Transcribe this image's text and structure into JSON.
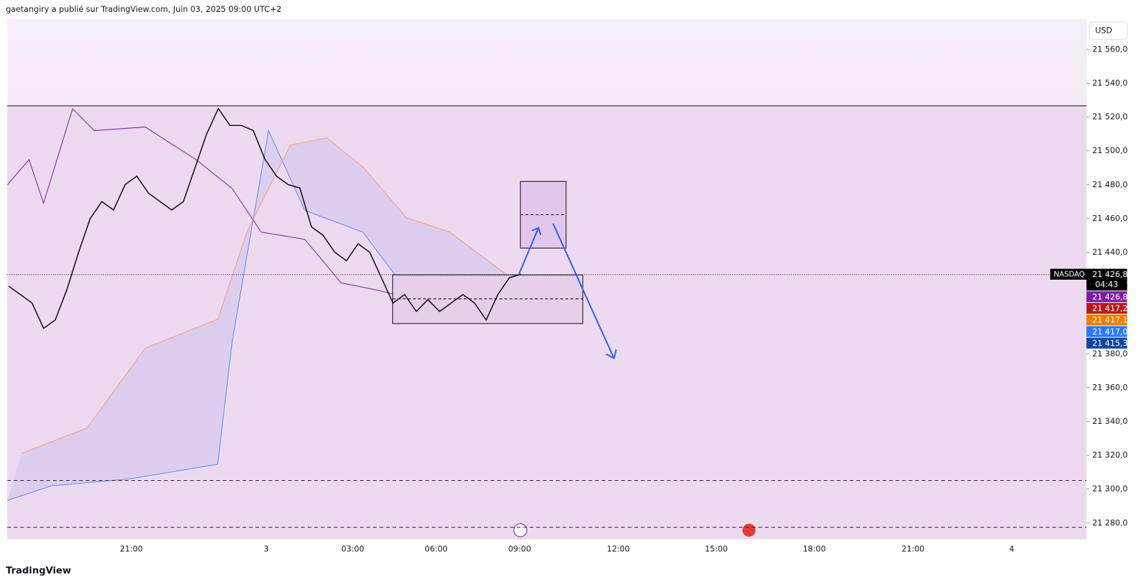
{
  "header": {
    "title": "gaetangiry a publié sur TradingView.com, Juin 03, 2025 09:00 UTC+2"
  },
  "footer": {
    "brand": "TradingView"
  },
  "chart_data": {
    "type": "line",
    "currency": "USD",
    "symbol": "NASDAQ",
    "countdown": "04:43",
    "ylim": [
      21270.5,
      21578
    ],
    "yticks": [
      {
        "value": 21280,
        "label": "21 280,0"
      },
      {
        "value": 21300,
        "label": "21 300,0"
      },
      {
        "value": 21320,
        "label": "21 320,0"
      },
      {
        "value": 21340,
        "label": "21 340,0"
      },
      {
        "value": 21360,
        "label": "21 360,0"
      },
      {
        "value": 21380,
        "label": "21 380,0"
      },
      {
        "value": 21400,
        "label": "21 400,0"
      },
      {
        "value": 21420,
        "label": "21 420,0"
      },
      {
        "value": 21440,
        "label": "21 440,0"
      },
      {
        "value": 21460,
        "label": "21 460,0"
      },
      {
        "value": 21480,
        "label": "21 480,0"
      },
      {
        "value": 21500,
        "label": "21 500,0"
      },
      {
        "value": 21520,
        "label": "21 520,0"
      },
      {
        "value": 21540,
        "label": "21 540,0"
      },
      {
        "value": 21560,
        "label": "21 560,0"
      }
    ],
    "xticks": [
      "21:00",
      "3",
      "03:00",
      "06:00",
      "09:00",
      "12:00",
      "15:00",
      "18:00",
      "21:00",
      "4"
    ],
    "series": [
      {
        "color": "#111111",
        "values": [
          21420,
          21415,
          21410,
          21395,
          21400,
          21418,
          21440,
          21460,
          21470,
          21465,
          21480,
          21485,
          21475,
          21470,
          21465,
          21470,
          21490,
          21510,
          21525,
          21515,
          21515,
          21512,
          21495,
          21485,
          21480,
          21478,
          21455,
          21450,
          21440,
          21435,
          21445,
          21440,
          21425,
          21410,
          21415,
          21405,
          21412,
          21405,
          21410,
          21415,
          21410,
          21400,
          21415,
          21425,
          21427
        ]
      }
    ],
    "levels": [
      {
        "value": 21526.6,
        "style": "solid"
      },
      {
        "value": 21426.8,
        "style": "dotted"
      },
      {
        "value": 21305,
        "style": "dashed"
      },
      {
        "value": 21277.4,
        "style": "dashed"
      }
    ],
    "price_tags": [
      {
        "value": 21426.8,
        "label": "21 426,8",
        "color": "#000000"
      },
      {
        "value": 21426.8,
        "label": "21 426,8",
        "color": "#7b1fa2"
      },
      {
        "value": 21417.2,
        "label": "21 417,2",
        "color": "#b71c1c"
      },
      {
        "value": 21417.1,
        "label": "21 417,1",
        "color": "#f57c00"
      },
      {
        "value": 21417.0,
        "label": "21 417,0",
        "color": "#2979ff"
      },
      {
        "value": 21415.3,
        "label": "21 415,3",
        "color": "#0d47a1"
      }
    ]
  }
}
